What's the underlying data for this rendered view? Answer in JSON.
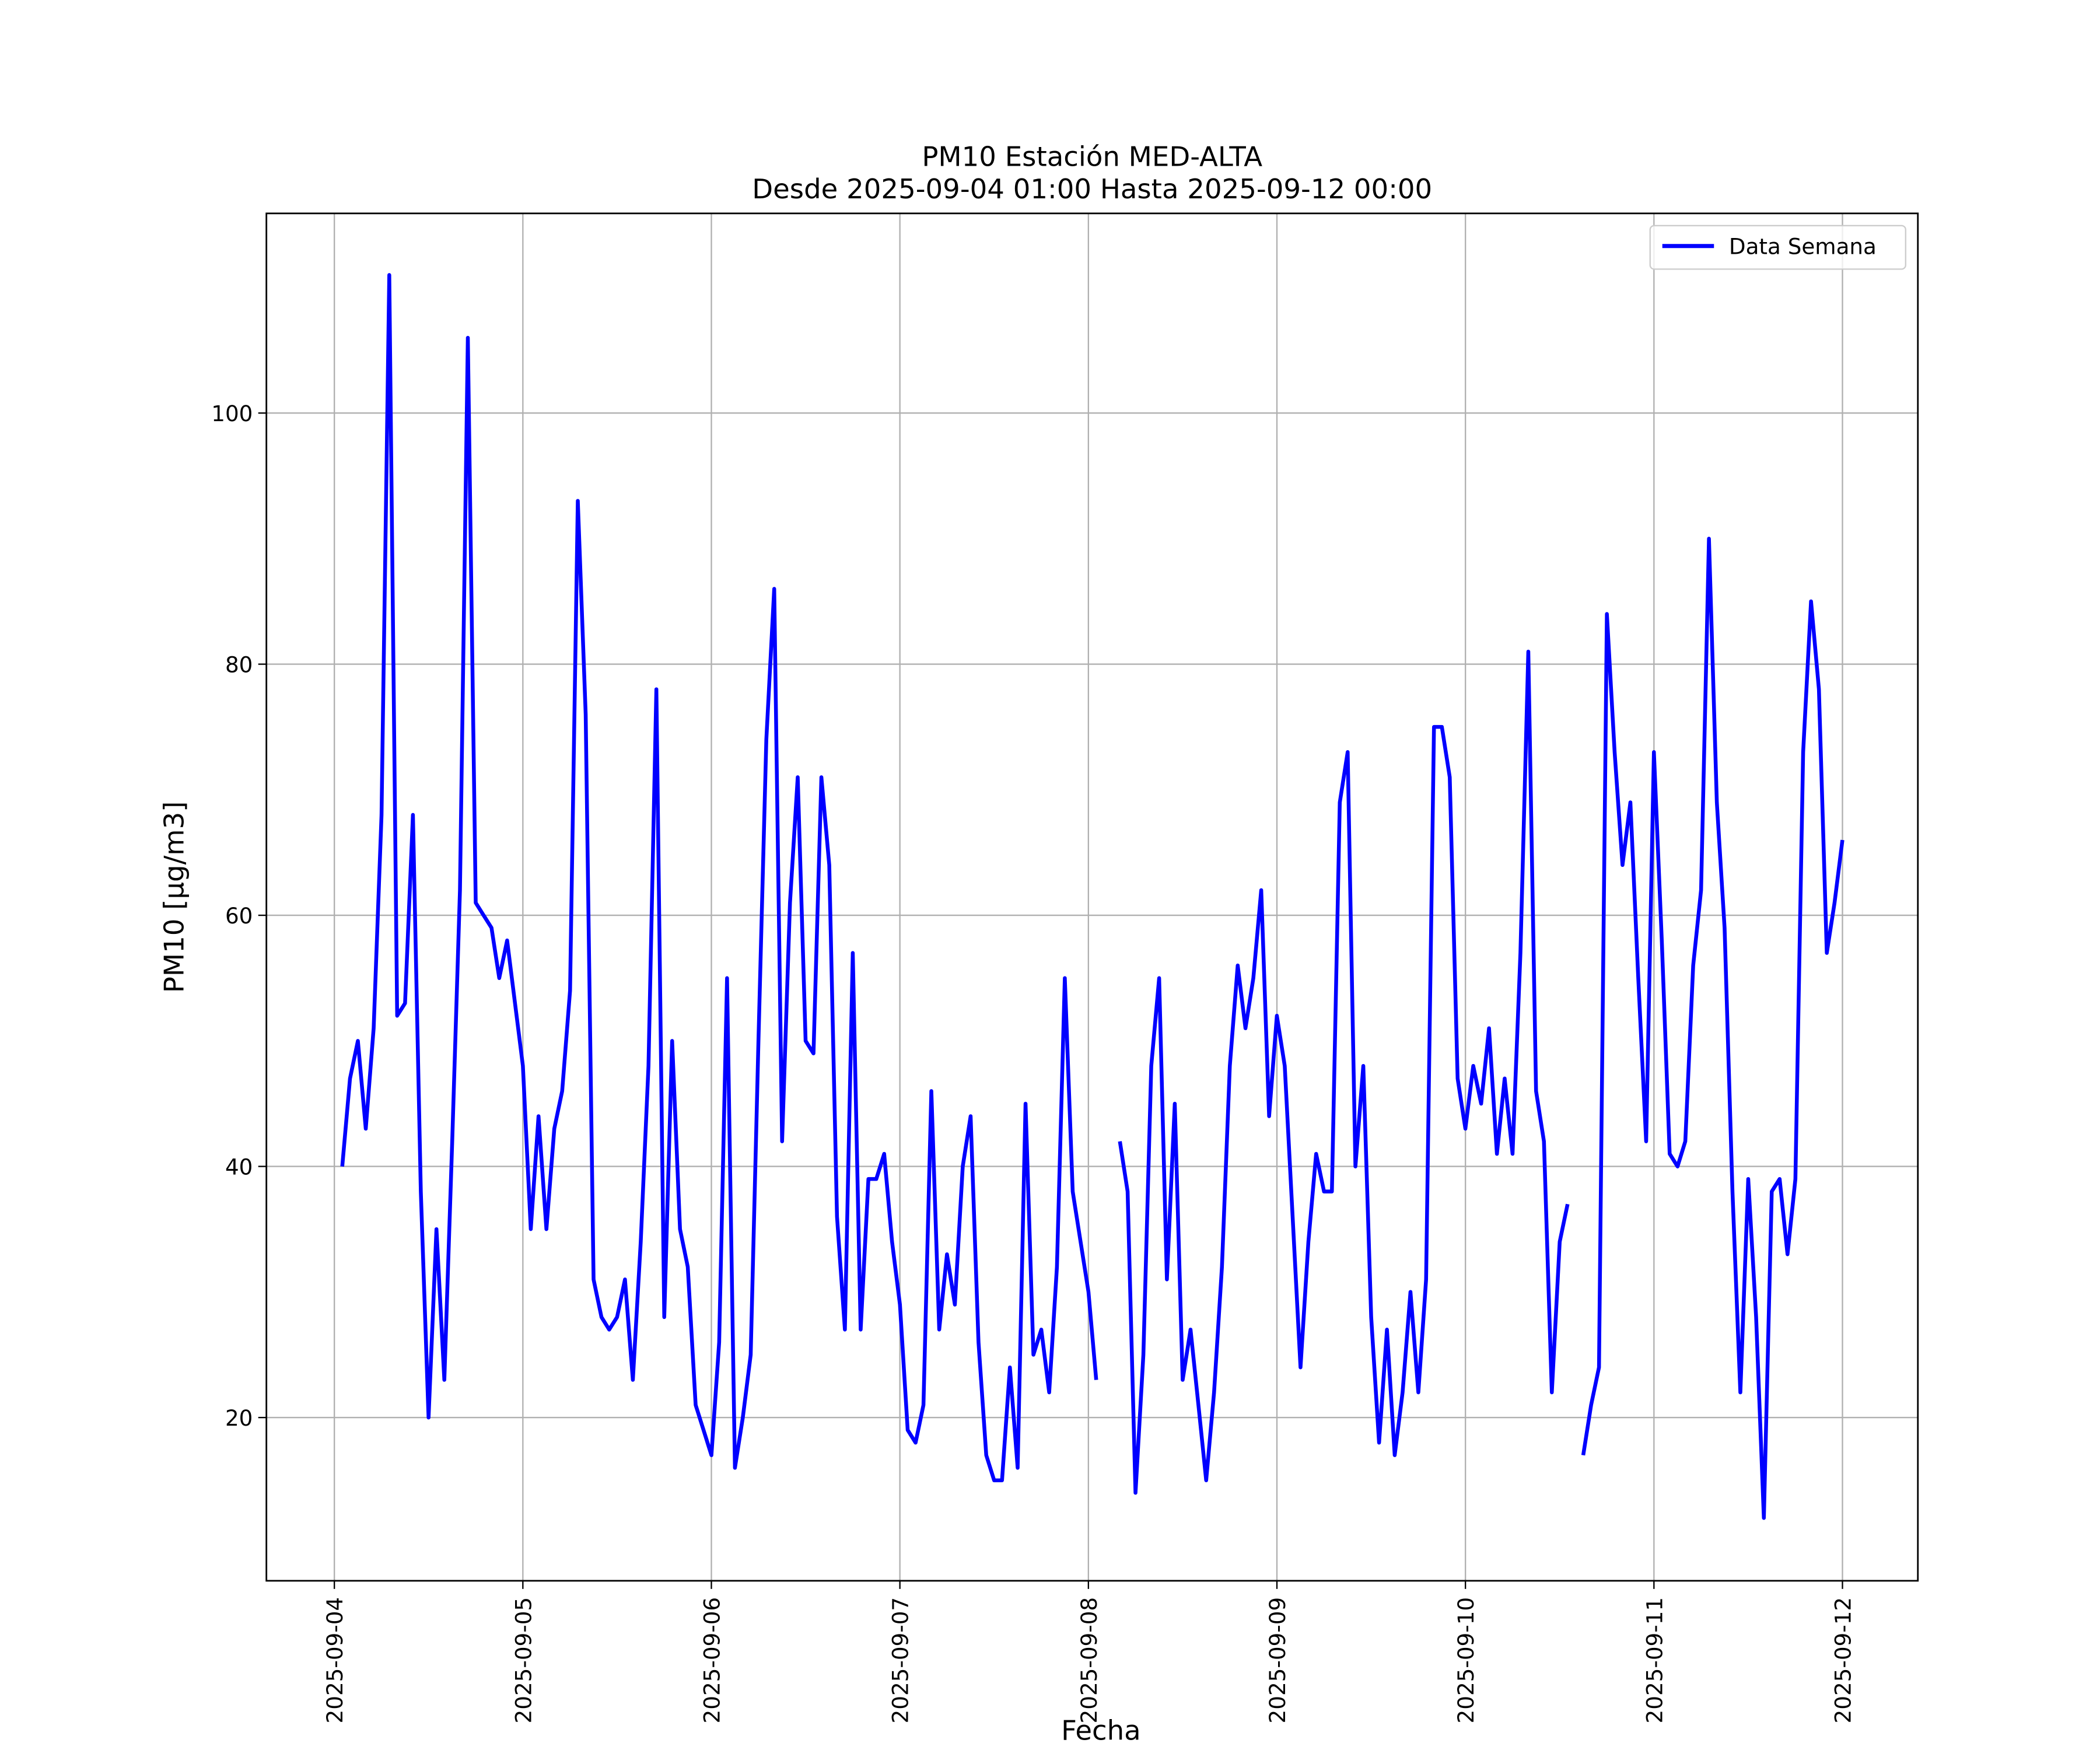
{
  "chart_data": {
    "type": "line",
    "title": "PM10 Estación MED-ALTA",
    "subtitle": "Desde 2025-09-04 01:00 Hasta 2025-09-12 00:00",
    "xlabel": "Fecha",
    "ylabel": "PM10 [μg/m3]",
    "ylabel_parts": {
      "prefix": "PM10 [",
      "unit": "μg/m3",
      "suffix": "]"
    },
    "x_start": "2025-09-04 01:00",
    "x_step": "1 hour",
    "xlim_hours_from_2025-09-04": [
      -8.65,
      201.6
    ],
    "ylim": [
      7.0,
      115.9
    ],
    "grid": true,
    "legend_position": "top-right",
    "x_ticks": [
      "2025-09-04",
      "2025-09-05",
      "2025-09-06",
      "2025-09-07",
      "2025-09-08",
      "2025-09-09",
      "2025-09-10",
      "2025-09-11",
      "2025-09-12"
    ],
    "y_ticks": [
      20,
      40,
      60,
      80,
      100
    ],
    "series": [
      {
        "name": "Data Semana",
        "color": "#0000ff",
        "values": [
          40,
          47,
          50,
          43,
          51,
          68,
          111,
          52,
          53,
          68,
          38,
          20,
          35,
          23,
          42,
          62,
          106,
          61,
          60,
          59,
          55,
          58,
          53,
          48,
          35,
          44,
          35,
          43,
          46,
          54,
          93,
          76,
          31,
          28,
          27,
          28,
          31,
          23,
          34,
          48,
          78,
          28,
          50,
          35,
          32,
          21,
          19,
          17,
          26,
          55,
          16,
          20,
          25,
          50,
          74,
          86,
          42,
          61,
          71,
          50,
          49,
          71,
          64,
          36,
          27,
          57,
          27,
          39,
          39,
          41,
          34,
          29,
          19,
          18,
          21,
          46,
          27,
          33,
          29,
          40,
          44,
          26,
          17,
          15,
          15,
          24,
          16,
          45,
          25,
          27,
          22,
          32,
          55,
          38,
          34,
          30,
          23,
          null,
          null,
          42,
          38,
          14,
          25,
          48,
          55,
          31,
          45,
          23,
          27,
          21,
          15,
          22,
          32,
          48,
          56,
          51,
          55,
          62,
          44,
          52,
          48,
          36,
          24,
          34,
          41,
          38,
          38,
          69,
          73,
          40,
          48,
          28,
          18,
          27,
          17,
          22,
          30,
          22,
          31,
          75,
          75,
          71,
          47,
          43,
          48,
          45,
          51,
          41,
          47,
          41,
          57,
          81,
          46,
          42,
          22,
          34,
          37,
          null,
          17,
          21,
          24,
          84,
          73,
          64,
          69,
          55,
          42,
          73,
          58,
          41,
          40,
          42,
          56,
          62,
          90,
          69,
          59,
          38,
          22,
          39,
          28,
          12,
          38,
          39,
          33,
          39,
          73,
          85,
          78,
          57,
          61,
          66
        ]
      }
    ]
  }
}
